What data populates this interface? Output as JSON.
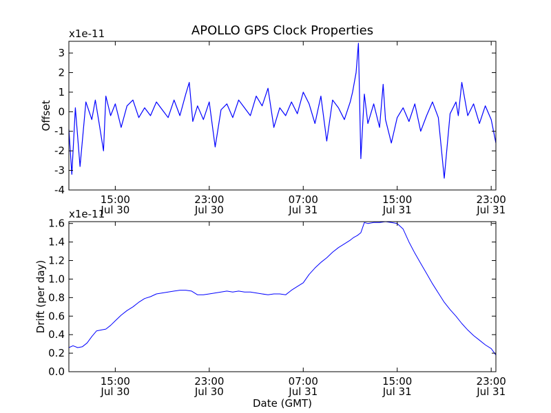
{
  "figure": {
    "title": "APOLLO GPS Clock Properties"
  },
  "chart_data": [
    {
      "type": "line",
      "ylabel": "Offset",
      "y_scale_label": "x1e-11",
      "ylim": [
        -4,
        3.6
      ],
      "y_ticks": [
        -4,
        -3,
        -2,
        -1,
        0,
        1,
        2,
        3
      ],
      "y_tick_labels": [
        "-4",
        "-3",
        "-2",
        "-1",
        "0",
        "1",
        "2",
        "3"
      ],
      "x_ticks": [
        {
          "hour": 15,
          "time": "15:00",
          "date": "Jul 30"
        },
        {
          "hour": 23,
          "time": "23:00",
          "date": "Jul 30"
        },
        {
          "hour": 31,
          "time": "07:00",
          "date": "Jul 31"
        },
        {
          "hour": 39,
          "time": "15:00",
          "date": "Jul 31"
        },
        {
          "hour": 47,
          "time": "23:00",
          "date": "Jul 31"
        }
      ],
      "xlim_hours": [
        11.05,
        47.4
      ],
      "series": [
        {
          "color": "#0000ff",
          "x": [
            11.05,
            11.3,
            11.6,
            12.0,
            12.5,
            13.0,
            13.3,
            13.6,
            14.0,
            14.2,
            14.6,
            15.0,
            15.5,
            16.0,
            16.5,
            17.0,
            17.5,
            18.0,
            18.5,
            19.0,
            19.5,
            20.0,
            20.5,
            21.0,
            21.3,
            21.6,
            22.0,
            22.5,
            23.0,
            23.5,
            24.0,
            24.5,
            25.0,
            25.5,
            26.0,
            26.5,
            27.0,
            27.5,
            28.0,
            28.5,
            29.0,
            29.5,
            30.0,
            30.5,
            31.0,
            31.5,
            32.0,
            32.5,
            33.0,
            33.5,
            34.0,
            34.5,
            35.0,
            35.2,
            35.5,
            35.7,
            35.9,
            36.2,
            36.5,
            37.0,
            37.5,
            37.8,
            38.0,
            38.5,
            39.0,
            39.5,
            40.0,
            40.5,
            41.0,
            41.5,
            42.0,
            42.5,
            43.0,
            43.5,
            44.0,
            44.2,
            44.5,
            45.0,
            45.5,
            46.0,
            46.5,
            47.0,
            47.4
          ],
          "y": [
            -0.9,
            -3.2,
            0.2,
            -2.8,
            0.5,
            -0.4,
            0.6,
            -0.5,
            -2.0,
            0.8,
            -0.2,
            0.4,
            -0.8,
            0.3,
            0.6,
            -0.3,
            0.2,
            -0.2,
            0.5,
            0.1,
            -0.3,
            0.6,
            -0.2,
            0.9,
            1.5,
            -0.5,
            0.3,
            -0.4,
            0.5,
            -1.8,
            0.1,
            0.4,
            -0.3,
            0.6,
            0.2,
            -0.2,
            0.8,
            0.3,
            1.2,
            -0.8,
            0.2,
            -0.2,
            0.5,
            -0.1,
            1.0,
            0.4,
            -0.6,
            0.8,
            -1.5,
            0.6,
            0.2,
            -0.4,
            0.5,
            1.0,
            2.0,
            3.5,
            -2.4,
            0.9,
            -0.6,
            0.4,
            -0.8,
            1.4,
            -0.4,
            -1.6,
            -0.3,
            0.2,
            -0.5,
            0.4,
            -1.0,
            -0.2,
            0.5,
            -0.3,
            -3.4,
            -0.1,
            0.5,
            -0.2,
            1.5,
            -0.2,
            0.4,
            -0.6,
            0.3,
            -0.4,
            -1.6
          ]
        }
      ]
    },
    {
      "type": "line",
      "ylabel": "Drift (per day)",
      "y_scale_label": "x1e-11",
      "xlabel": "Date (GMT)",
      "ylim": [
        0.0,
        1.62
      ],
      "y_ticks": [
        0.0,
        0.2,
        0.4,
        0.6,
        0.8,
        1.0,
        1.2,
        1.4,
        1.6
      ],
      "y_tick_labels": [
        "0.0",
        "0.2",
        "0.4",
        "0.6",
        "0.8",
        "1.0",
        "1.2",
        "1.4",
        "1.6"
      ],
      "x_ticks": [
        {
          "hour": 15,
          "time": "15:00",
          "date": "Jul 30"
        },
        {
          "hour": 23,
          "time": "23:00",
          "date": "Jul 30"
        },
        {
          "hour": 31,
          "time": "07:00",
          "date": "Jul 31"
        },
        {
          "hour": 39,
          "time": "15:00",
          "date": "Jul 31"
        },
        {
          "hour": 47,
          "time": "23:00",
          "date": "Jul 31"
        }
      ],
      "xlim_hours": [
        11.05,
        47.4
      ],
      "series": [
        {
          "color": "#0000ff",
          "x": [
            11.05,
            11.4,
            11.8,
            12.2,
            12.6,
            13.0,
            13.4,
            13.8,
            14.2,
            14.6,
            15.0,
            15.5,
            16.0,
            16.5,
            17.0,
            17.5,
            18.0,
            18.5,
            19.0,
            19.5,
            20.0,
            20.5,
            21.0,
            21.5,
            22.0,
            22.5,
            23.0,
            23.5,
            24.0,
            24.5,
            25.0,
            25.5,
            26.0,
            26.5,
            27.0,
            27.5,
            28.0,
            28.5,
            29.0,
            29.5,
            30.0,
            30.5,
            31.0,
            31.5,
            32.0,
            32.5,
            33.0,
            33.5,
            34.0,
            34.5,
            35.0,
            35.3,
            35.6,
            35.9,
            36.2,
            36.5,
            37.0,
            37.5,
            38.0,
            38.5,
            39.0,
            39.5,
            40.0,
            40.5,
            41.0,
            41.5,
            42.0,
            42.5,
            43.0,
            43.5,
            44.0,
            44.5,
            45.0,
            45.5,
            46.0,
            46.5,
            47.0,
            47.4
          ],
          "y": [
            0.26,
            0.28,
            0.26,
            0.27,
            0.31,
            0.38,
            0.44,
            0.45,
            0.46,
            0.5,
            0.55,
            0.61,
            0.66,
            0.7,
            0.75,
            0.79,
            0.81,
            0.84,
            0.85,
            0.86,
            0.87,
            0.88,
            0.88,
            0.87,
            0.83,
            0.83,
            0.84,
            0.85,
            0.86,
            0.87,
            0.86,
            0.87,
            0.86,
            0.86,
            0.85,
            0.84,
            0.83,
            0.84,
            0.84,
            0.83,
            0.88,
            0.92,
            0.96,
            1.05,
            1.12,
            1.18,
            1.23,
            1.29,
            1.34,
            1.38,
            1.42,
            1.45,
            1.47,
            1.5,
            1.61,
            1.6,
            1.61,
            1.61,
            1.62,
            1.61,
            1.6,
            1.54,
            1.4,
            1.28,
            1.17,
            1.06,
            0.95,
            0.85,
            0.75,
            0.67,
            0.6,
            0.52,
            0.45,
            0.39,
            0.34,
            0.29,
            0.25,
            0.18
          ]
        }
      ]
    }
  ]
}
